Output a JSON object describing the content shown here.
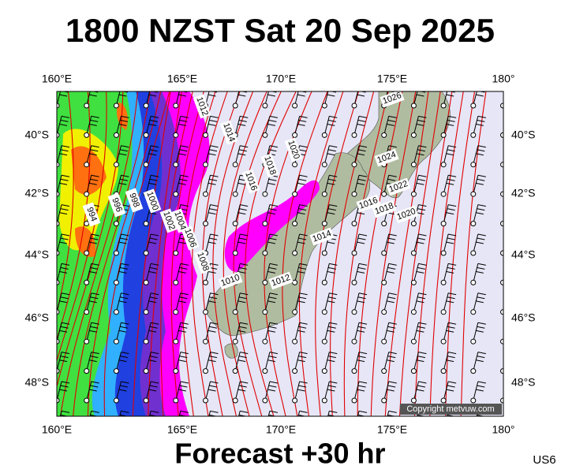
{
  "header": {
    "title": "1800 NZST Sat 20 Sep 2025"
  },
  "axes": {
    "top": [
      "160°E",
      "165°E",
      "170°E",
      "175°E",
      "180°"
    ],
    "bottom": [
      "160°E",
      "165°E",
      "170°E",
      "175°E",
      "180°"
    ],
    "left": [
      "40°S",
      "42°S",
      "44°S",
      "46°S",
      "48°S"
    ],
    "right": [
      "40°S",
      "42°S",
      "44°S",
      "46°S",
      "48°S"
    ]
  },
  "isobar_labels": [
    "994",
    "996",
    "998",
    "1000",
    "1002",
    "1004",
    "1006",
    "1008",
    "1012",
    "1014",
    "1016",
    "1018",
    "1020",
    "1024",
    "1022",
    "1026",
    "1014",
    "1012",
    "1010",
    "1016",
    "1018",
    "1020"
  ],
  "copyright": "Copyright metvuw.com",
  "footer": {
    "forecast": "Forecast +30 hr",
    "code": "US6"
  }
}
